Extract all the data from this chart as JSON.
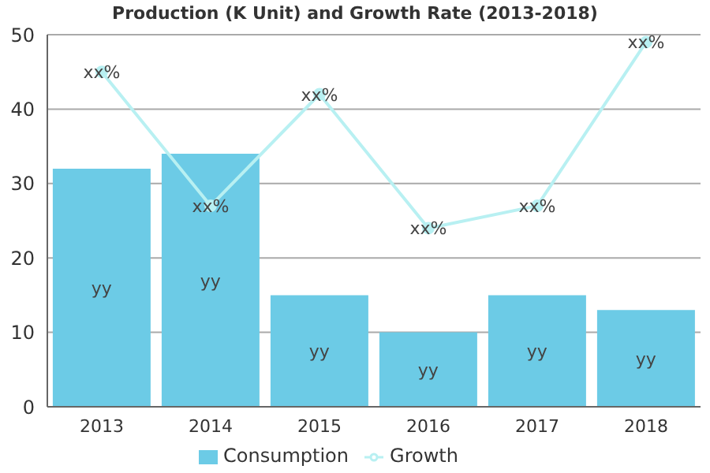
{
  "chart_data": {
    "type": "bar",
    "title": "Production (K Unit) and Growth Rate (2013-2018)",
    "categories": [
      "2013",
      "2014",
      "2015",
      "2016",
      "2017",
      "2018"
    ],
    "series": [
      {
        "name": "Consumption",
        "color": "#6ccbe6",
        "values": [
          32,
          34,
          15,
          10,
          15,
          13
        ],
        "value_labels": [
          "yy",
          "yy",
          "yy",
          "yy",
          "yy",
          "yy"
        ]
      },
      {
        "name": "Growth",
        "type": "line",
        "color": "#b8f0f2",
        "values": [
          45,
          27,
          42,
          24,
          27,
          49
        ],
        "value_labels": [
          "xx%",
          "xx%",
          "xx%",
          "xx%",
          "xx%",
          "xx%"
        ]
      }
    ],
    "ylim": [
      0,
      50
    ],
    "yticks": [
      0,
      10,
      20,
      30,
      40,
      50
    ],
    "grid": "y",
    "legend": "bottom",
    "marker": "circle",
    "line_style": "solid"
  }
}
